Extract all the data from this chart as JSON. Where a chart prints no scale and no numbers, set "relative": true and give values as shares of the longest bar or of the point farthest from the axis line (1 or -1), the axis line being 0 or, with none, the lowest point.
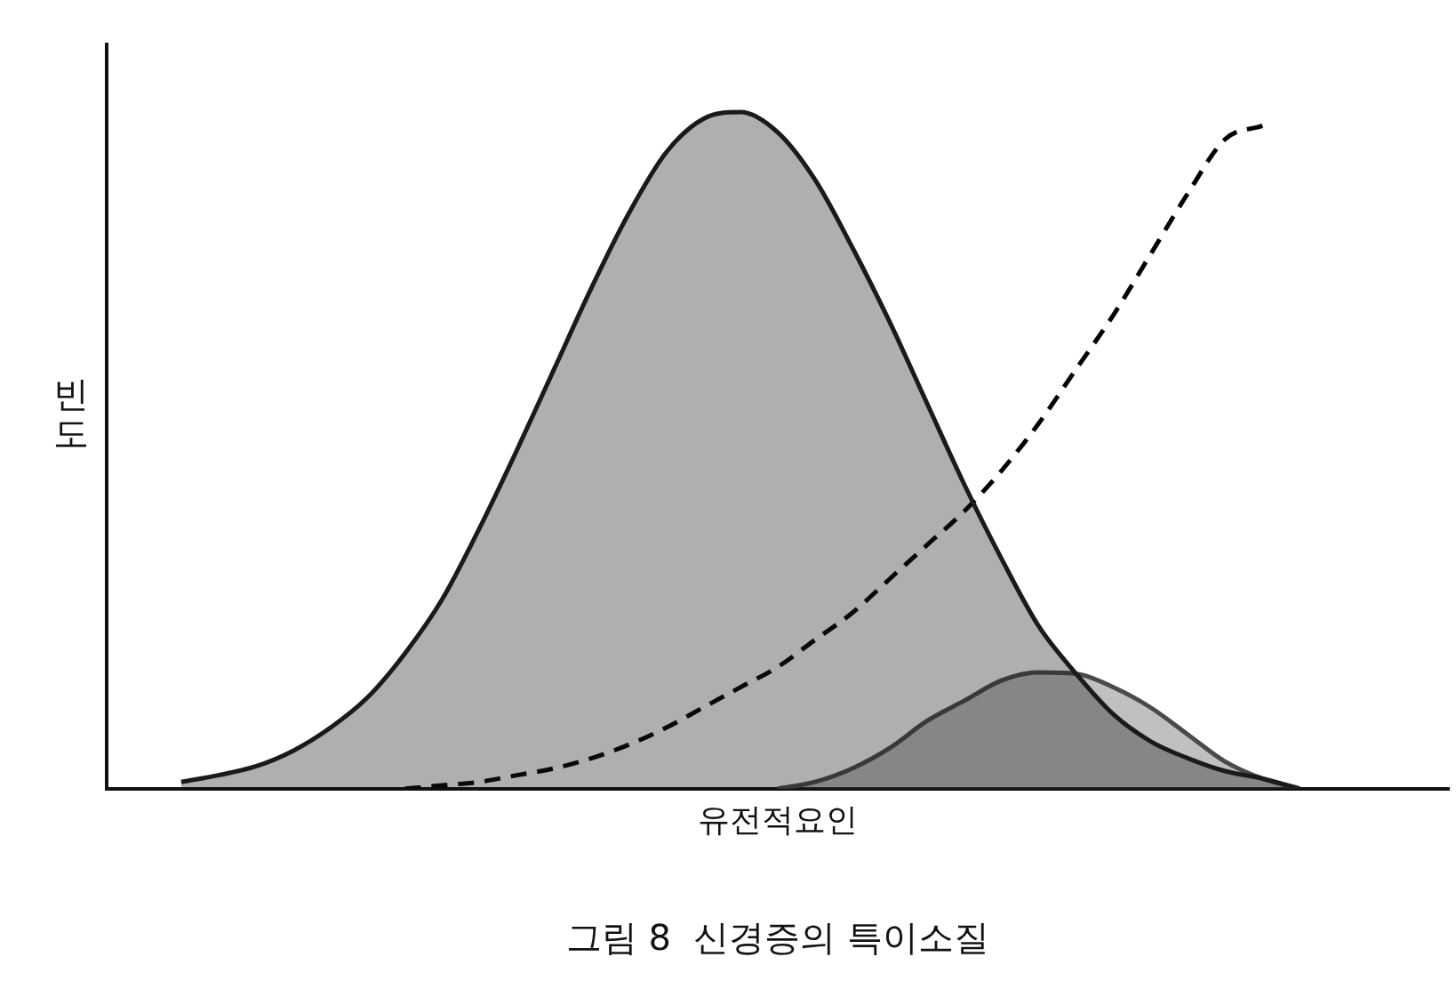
{
  "chart_data": {
    "type": "area",
    "relative": true,
    "title": "그림 8  신경증의 특이소질",
    "xlabel": "유전적요인",
    "ylabel": "빈도",
    "grid": false,
    "legend": false,
    "tick_labels": false,
    "categories": [
      null,
      null,
      null,
      null,
      null,
      null,
      null,
      null,
      null,
      null,
      null,
      null,
      null,
      null,
      null,
      null,
      null,
      null,
      null,
      null,
      null,
      null,
      null,
      null,
      null,
      null,
      null,
      null,
      null,
      null,
      null,
      null,
      null,
      null,
      null,
      null,
      null
    ],
    "series": [
      {
        "color": "#1a1a1a",
        "values": [
          null,
          null,
          0.01,
          0.02,
          0.033,
          0.056,
          0.09,
          0.135,
          0.2,
          0.28,
          0.385,
          0.5,
          0.62,
          0.74,
          0.85,
          0.94,
          0.99,
          1,
          0.97,
          0.9,
          0.8,
          0.69,
          0.57,
          0.45,
          0.34,
          0.24,
          0.17,
          0.11,
          0.07,
          0.045,
          0.026,
          0.015,
          0,
          null,
          null,
          null,
          null
        ]
      },
      {
        "color": "#4a4a4a",
        "values": [
          null,
          null,
          null,
          null,
          null,
          null,
          null,
          null,
          null,
          null,
          null,
          null,
          null,
          null,
          null,
          null,
          null,
          null,
          0,
          0.01,
          0.03,
          0.06,
          0.1,
          0.13,
          0.16,
          0.172,
          0.17,
          0.15,
          0.12,
          0.08,
          0.04,
          0.015,
          0,
          null,
          null,
          null,
          null
        ]
      },
      {
        "type": "line",
        "color": "#000000",
        "line_style": "dashed",
        "values": [
          null,
          null,
          null,
          null,
          null,
          null,
          null,
          null,
          0,
          0.005,
          0.01,
          0.02,
          0.03,
          0.045,
          0.065,
          0.09,
          0.12,
          0.15,
          0.18,
          0.22,
          0.26,
          0.31,
          0.36,
          0.41,
          0.47,
          0.54,
          0.62,
          0.7,
          0.79,
          0.88,
          0.96,
          0.98,
          null,
          null,
          null,
          null,
          null
        ]
      }
    ]
  }
}
